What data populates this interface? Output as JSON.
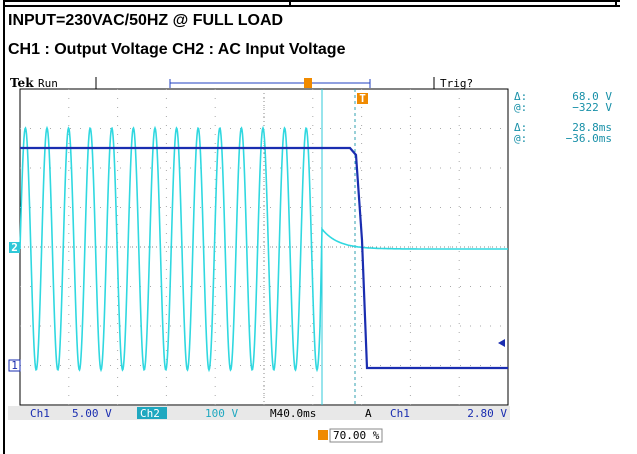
{
  "header": {
    "line1": "INPUT=230VAC/50HZ @ FULL LOAD",
    "line2": "CH1 : Output Voltage CH2 : AC Input Voltage"
  },
  "scope": {
    "brand": "Tek",
    "state": "Run",
    "trigger_status": "Trig?",
    "readouts": [
      {
        "label": "Δ:",
        "value": "68.0 V"
      },
      {
        "label": "@:",
        "value": "−322 V"
      },
      {
        "label": "Δ:",
        "value": "28.8ms"
      },
      {
        "label": "@:",
        "value": "−36.0ms"
      }
    ],
    "channel_markers": [
      "2",
      "1"
    ],
    "trigger_marker": "T",
    "status_bar": {
      "ch1_label": "Ch1",
      "ch1_scale": "5.00 V",
      "ch2_label": "Ch2",
      "ch2_scale": "100 V",
      "timebase": "M40.0ms",
      "trigger_mode": "A",
      "trigger_source": "Ch1",
      "trigger_level": "2.80 V"
    },
    "trigger_position": "70.00 %"
  }
}
